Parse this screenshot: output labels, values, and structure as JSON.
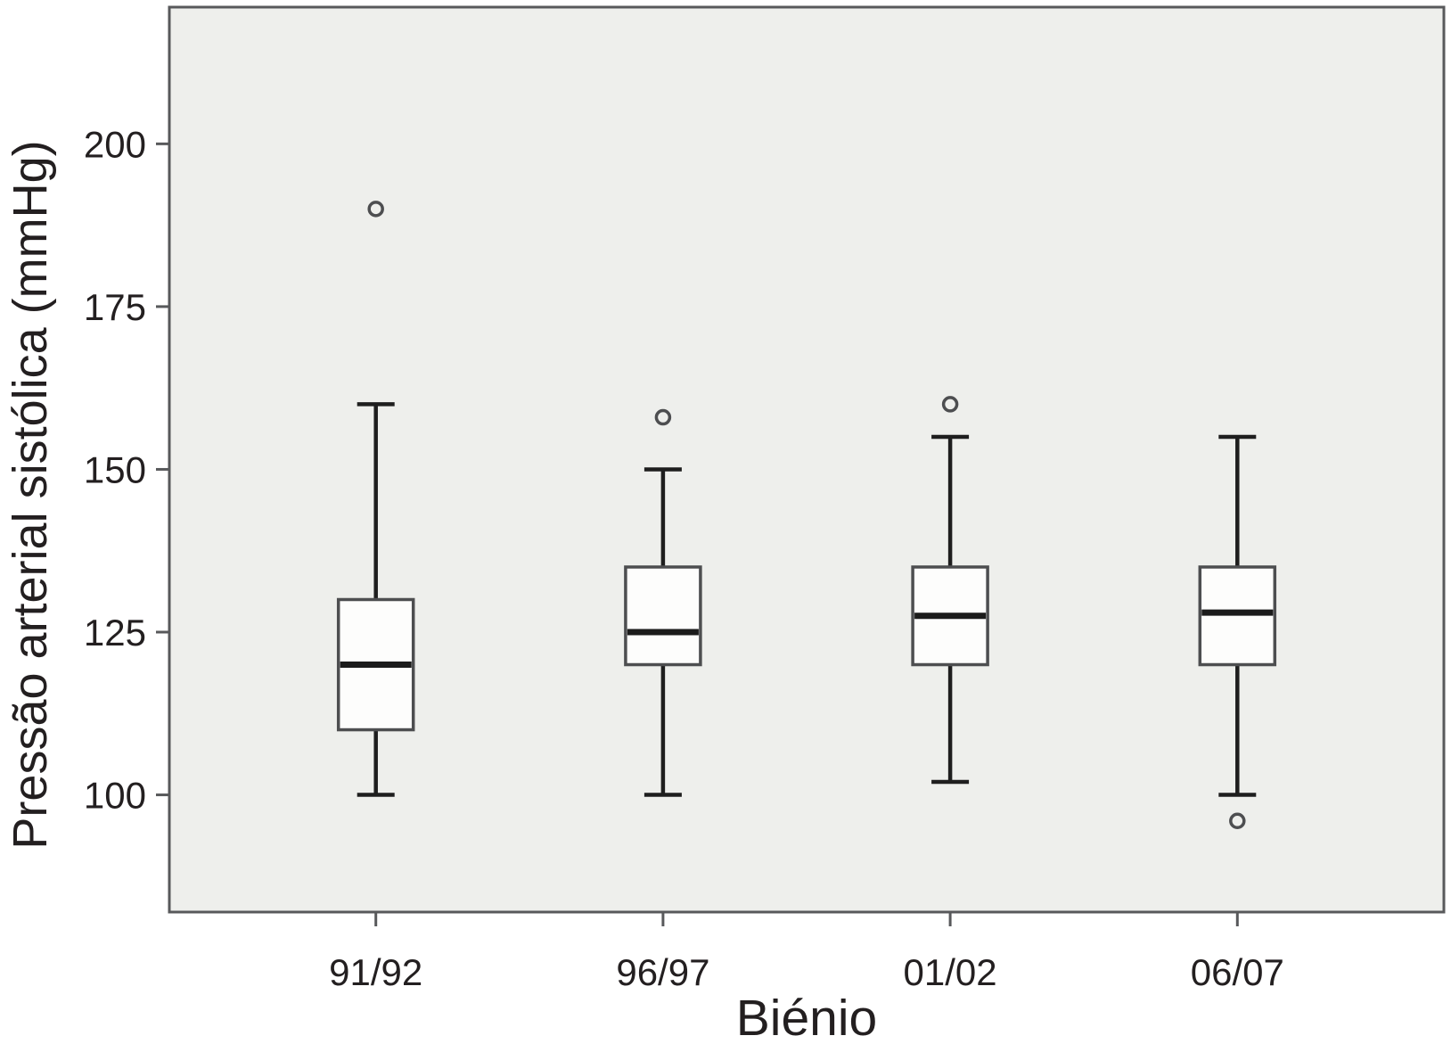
{
  "chart_data": {
    "type": "boxplot",
    "title": "",
    "ylabel": "Pressão arterial sistólica (mmHg)",
    "xlabel": "Biénio",
    "categories": [
      "91/92",
      "96/97",
      "01/02",
      "06/07"
    ],
    "yticks": [
      100,
      125,
      150,
      175,
      200
    ],
    "ylim": [
      82,
      221
    ],
    "grid": false,
    "legend": "none",
    "series": [
      {
        "category": "91/92",
        "whisker_low": 100,
        "q1": 110,
        "median": 120,
        "q3": 130,
        "whisker_high": 160,
        "outliers": [
          190
        ]
      },
      {
        "category": "96/97",
        "whisker_low": 100,
        "q1": 120,
        "median": 125,
        "q3": 135,
        "whisker_high": 150,
        "outliers": [
          158
        ]
      },
      {
        "category": "01/02",
        "whisker_low": 102,
        "q1": 120,
        "median": 127.5,
        "q3": 135,
        "whisker_high": 155,
        "outliers": [
          160
        ]
      },
      {
        "category": "06/07",
        "whisker_low": 100,
        "q1": 120,
        "median": 128,
        "q3": 135,
        "whisker_high": 155,
        "outliers": [
          96
        ]
      }
    ],
    "colors": {
      "figure_background": "#ffffff",
      "plot_background": "#eeefec",
      "plot_border": "#58595b",
      "box_fill": "#fdfdfc",
      "box_stroke": "#4d4e50",
      "median": "#1b1b1b",
      "whisker": "#1e1e1e",
      "outlier": "#4d4e50",
      "text": "#231f20"
    }
  }
}
